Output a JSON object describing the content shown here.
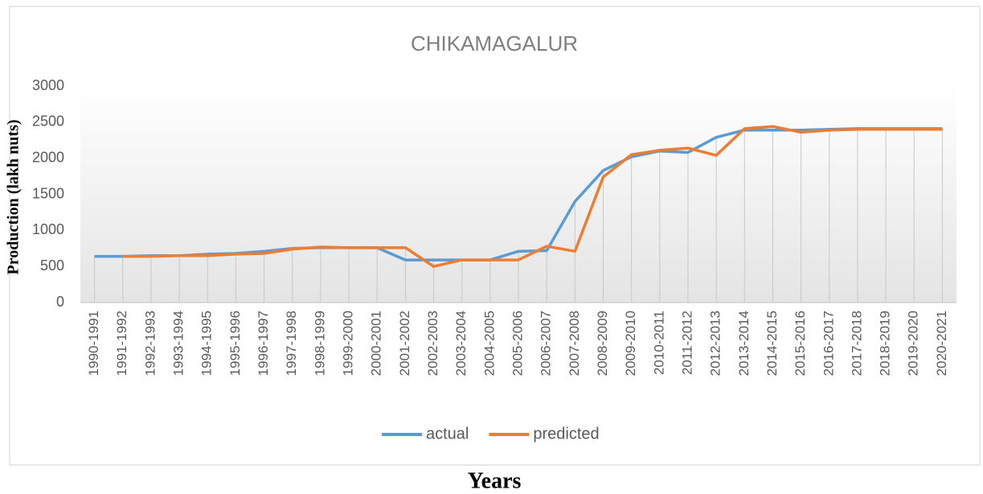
{
  "chart_data": {
    "type": "line",
    "title": "CHIKAMAGALUR",
    "x_label": "Years",
    "y_label": "Production (lakh nuts)",
    "categories": [
      "1990-1991",
      "1991-1992",
      "1992-1993",
      "1993-1994",
      "1994-1995",
      "1995-1996",
      "1996-1997",
      "1997-1998",
      "1998-1999",
      "1999-2000",
      "2000-2001",
      "2001-2002",
      "2002-2003",
      "2003-2004",
      "2004-2005",
      "2005-2006",
      "2006-2007",
      "2007-2008",
      "2008-2009",
      "2009-2010",
      "2010-2011",
      "2011-2012",
      "2012-2013",
      "2013-2014",
      "2014-2015",
      "2015-2016",
      "2016-2017",
      "2017-2018",
      "2018-2019",
      "2019-2020",
      "2020-2021"
    ],
    "series": [
      {
        "name": "actual",
        "color": "#5b9bd5",
        "values": [
          640,
          640,
          650,
          650,
          670,
          680,
          710,
          750,
          760,
          760,
          760,
          590,
          590,
          590,
          590,
          710,
          720,
          1400,
          1830,
          2020,
          2100,
          2080,
          2290,
          2390,
          2390,
          2390,
          2400,
          2410,
          2410,
          2410,
          2410
        ]
      },
      {
        "name": "predicted",
        "color": "#ed7d31",
        "values": [
          null,
          640,
          640,
          650,
          650,
          670,
          680,
          740,
          770,
          760,
          760,
          760,
          500,
          590,
          590,
          590,
          780,
          710,
          1740,
          2050,
          2110,
          2140,
          2040,
          2410,
          2440,
          2360,
          2390,
          2400,
          2400,
          2400,
          2400
        ]
      }
    ],
    "ylim": [
      0,
      3000
    ],
    "yticks": [
      0,
      500,
      1000,
      1500,
      2000,
      2500,
      3000
    ],
    "grid": false,
    "drop_lines": true,
    "legend": "bottom"
  }
}
